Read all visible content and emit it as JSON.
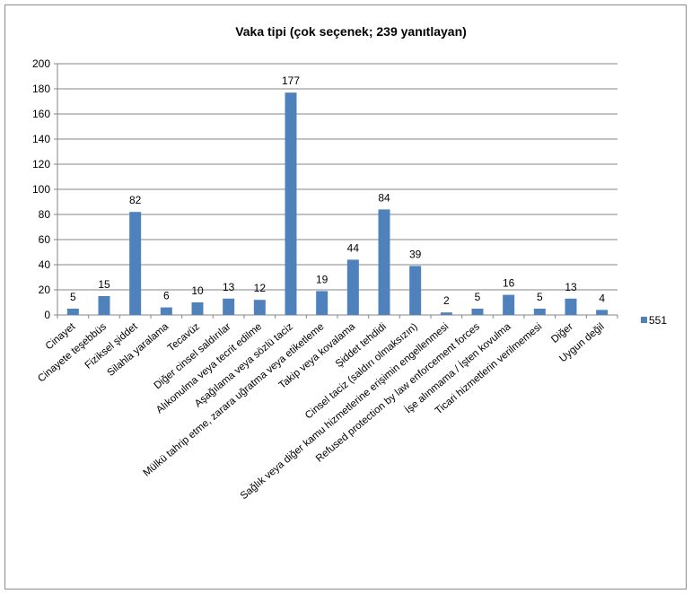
{
  "chart_data": {
    "type": "bar",
    "title": "Vaka tipi (çok seçenek; 239 yanıtlayan)",
    "xlabel": "",
    "ylabel": "",
    "ylim": [
      0,
      200
    ],
    "yticks": [
      0,
      20,
      40,
      60,
      80,
      100,
      120,
      140,
      160,
      180,
      200
    ],
    "grid": true,
    "legend_position": "right",
    "bar_color": "#4f81bd",
    "categories": [
      "Cinayet",
      "Cinayete teşebbüs",
      "Fiziksel şiddet",
      "Silahla yaralama",
      "Tecavüz",
      "Diğer cinsel saldırılar",
      "Alıkonulma veya tecrit edilme",
      "Aşağılama veya sözlü taciz",
      "Mülkü tahrip etme, zarara uğratma veya etiketleme",
      "Takip veya kovalama",
      "Şiddet tehdidi",
      "Cinsel taciz (saldırı olmaksızın)",
      "Sağlık veya diğer kamu hizmetlerine erişimin engellenmesi",
      "Refused protection by law enforcement  forces",
      "İşe alınmama / İşten kovulma",
      "Ticari hizmetlerin verilmemesi",
      "Diğer",
      "Uygun değil"
    ],
    "series": [
      {
        "name": "551",
        "values": [
          5,
          15,
          82,
          6,
          10,
          13,
          12,
          177,
          19,
          44,
          84,
          39,
          2,
          5,
          16,
          5,
          13,
          4
        ]
      }
    ]
  }
}
